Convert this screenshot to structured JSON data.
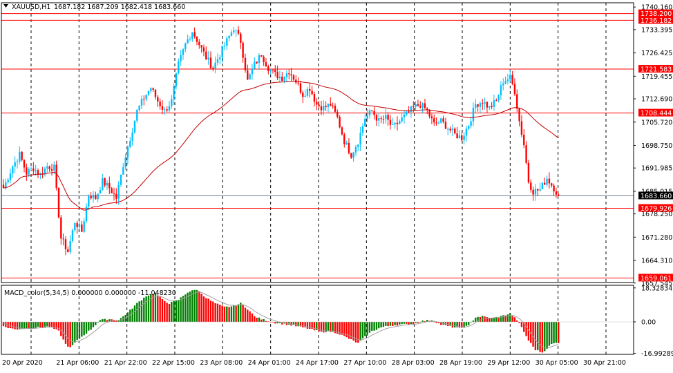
{
  "header": {
    "symbol": "XAUUSD,H1",
    "ohlc": "1687.182 1687.209 1682.418 1683.660",
    "macd_label": "MACD_color(5,34,5) 0.000000 0.000000 -11.048230"
  },
  "colors": {
    "bull": "#00BFFF",
    "bear": "#FF0000",
    "hist_pos": "#008000",
    "hist_neg": "#FF0000",
    "ma_line": "#C00000",
    "level_line": "#FF0000",
    "current_price_line": "#708090",
    "grid": "#000000"
  },
  "chart_data": [
    {
      "type": "candlestick",
      "title": "XAUUSD,H1",
      "y_axis_ticks": [
        "1740.160",
        "1733.395",
        "1726.425",
        "1719.455",
        "1712.690",
        "1705.720",
        "1698.750",
        "1691.985",
        "1685.015",
        "1678.250",
        "1671.280",
        "1664.310",
        "1657.545"
      ],
      "ylim": [
        1657.5,
        1740.2
      ],
      "x_axis_ticks": [
        "20 Apr 2020",
        "21 Apr 06:00",
        "21 Apr 22:00",
        "22 Apr 15:00",
        "23 Apr 08:00",
        "24 Apr 01:00",
        "24 Apr 17:00",
        "27 Apr 10:00",
        "28 Apr 03:00",
        "28 Apr 19:00",
        "29 Apr 12:00",
        "30 Apr 05:00",
        "30 Apr 21:00"
      ],
      "horizontal_levels": [
        "1738.200",
        "1736.182",
        "1721.583",
        "1708.444",
        "1679.926",
        "1659.061"
      ],
      "current_price": "1683.660",
      "close_path": [
        [
          0,
          1686.0
        ],
        [
          4,
          1692.5
        ],
        [
          7,
          1696.0
        ],
        [
          10,
          1690.5
        ],
        [
          13,
          1692.0
        ],
        [
          16,
          1690.0
        ],
        [
          19,
          1692.5
        ],
        [
          22,
          1692.0
        ],
        [
          25,
          1671.0
        ],
        [
          28,
          1667.0
        ],
        [
          31,
          1676.0
        ],
        [
          34,
          1673.0
        ],
        [
          37,
          1684.0
        ],
        [
          40,
          1683.0
        ],
        [
          43,
          1688.0
        ],
        [
          46,
          1686.0
        ],
        [
          49,
          1683.0
        ],
        [
          52,
          1693.0
        ],
        [
          55,
          1701.0
        ],
        [
          58,
          1709.0
        ],
        [
          61,
          1713.0
        ],
        [
          64,
          1716.0
        ],
        [
          67,
          1712.0
        ],
        [
          70,
          1709.0
        ],
        [
          73,
          1712.0
        ],
        [
          76,
          1723.0
        ],
        [
          79,
          1729.0
        ],
        [
          82,
          1733.0
        ],
        [
          85,
          1729.0
        ],
        [
          88,
          1725.0
        ],
        [
          91,
          1722.0
        ],
        [
          94,
          1726.0
        ],
        [
          97,
          1730.0
        ],
        [
          100,
          1734.0
        ],
        [
          103,
          1730.0
        ],
        [
          106,
          1718.0
        ],
        [
          109,
          1723.0
        ],
        [
          112,
          1726.0
        ],
        [
          115,
          1722.0
        ],
        [
          118,
          1720.0
        ],
        [
          121,
          1719.0
        ],
        [
          124,
          1721.0
        ],
        [
          127,
          1718.0
        ],
        [
          130,
          1714.0
        ],
        [
          133,
          1716.0
        ],
        [
          136,
          1711.0
        ],
        [
          139,
          1710.0
        ],
        [
          142,
          1711.0
        ],
        [
          145,
          1707.0
        ],
        [
          148,
          1700.0
        ],
        [
          151,
          1696.0
        ],
        [
          154,
          1700.0
        ],
        [
          157,
          1707.0
        ],
        [
          160,
          1709.0
        ],
        [
          163,
          1706.0
        ],
        [
          166,
          1707.0
        ],
        [
          169,
          1704.0
        ],
        [
          172,
          1706.0
        ],
        [
          175,
          1708.0
        ],
        [
          178,
          1710.0
        ],
        [
          181,
          1711.0
        ],
        [
          184,
          1709.0
        ],
        [
          187,
          1705.0
        ],
        [
          190,
          1706.0
        ],
        [
          193,
          1704.0
        ],
        [
          196,
          1702.0
        ],
        [
          199,
          1701.0
        ],
        [
          202,
          1705.0
        ],
        [
          205,
          1711.0
        ],
        [
          208,
          1712.0
        ],
        [
          211,
          1710.0
        ],
        [
          214,
          1712.0
        ],
        [
          217,
          1718.0
        ],
        [
          220,
          1719.0
        ],
        [
          222,
          1715.0
        ],
        [
          224,
          1706.0
        ],
        [
          226,
          1699.0
        ],
        [
          228,
          1688.0
        ],
        [
          230,
          1685.0
        ],
        [
          233,
          1685.5
        ],
        [
          236,
          1689.0
        ],
        [
          239,
          1686.0
        ],
        [
          241,
          1683.66
        ]
      ]
    },
    {
      "type": "bar",
      "title": "MACD_color(5,34,5)",
      "y_axis_ticks": [
        "18.328349",
        "0.00",
        "-16.992891"
      ],
      "ylim": [
        -17.5,
        19.0
      ],
      "histogram_path": [
        [
          0,
          -2.5
        ],
        [
          5,
          -4.0
        ],
        [
          10,
          -3.5
        ],
        [
          15,
          -3.0
        ],
        [
          20,
          -2.5
        ],
        [
          24,
          -5.0
        ],
        [
          27,
          -12.0
        ],
        [
          29,
          -14.0
        ],
        [
          32,
          -10.0
        ],
        [
          35,
          -7.0
        ],
        [
          38,
          -4.0
        ],
        [
          42,
          1.0
        ],
        [
          46,
          1.5
        ],
        [
          50,
          1.0
        ],
        [
          54,
          5.0
        ],
        [
          58,
          10.0
        ],
        [
          62,
          14.0
        ],
        [
          66,
          15.5
        ],
        [
          69,
          12.0
        ],
        [
          72,
          10.0
        ],
        [
          76,
          12.0
        ],
        [
          80,
          16.0
        ],
        [
          84,
          17.5
        ],
        [
          88,
          13.0
        ],
        [
          92,
          10.0
        ],
        [
          96,
          8.0
        ],
        [
          100,
          8.5
        ],
        [
          103,
          10.0
        ],
        [
          106,
          7.0
        ],
        [
          109,
          3.0
        ],
        [
          112,
          1.5
        ],
        [
          115,
          0.5
        ],
        [
          118,
          -0.5
        ],
        [
          121,
          -1.0
        ],
        [
          126,
          -2.0
        ],
        [
          132,
          -3.5
        ],
        [
          138,
          -5.5
        ],
        [
          141,
          -5.0
        ],
        [
          145,
          -6.0
        ],
        [
          150,
          -9.0
        ],
        [
          154,
          -11.5
        ],
        [
          157,
          -8.0
        ],
        [
          160,
          -5.0
        ],
        [
          164,
          -3.0
        ],
        [
          168,
          -2.0
        ],
        [
          172,
          -1.5
        ],
        [
          178,
          -1.0
        ],
        [
          182,
          0.5
        ],
        [
          186,
          1.0
        ],
        [
          190,
          -1.5
        ],
        [
          194,
          -2.5
        ],
        [
          198,
          -3.5
        ],
        [
          202,
          -2.0
        ],
        [
          205,
          2.5
        ],
        [
          208,
          3.0
        ],
        [
          212,
          2.0
        ],
        [
          216,
          3.0
        ],
        [
          220,
          4.5
        ],
        [
          223,
          1.0
        ],
        [
          225,
          -3.0
        ],
        [
          228,
          -10.0
        ],
        [
          231,
          -15.0
        ],
        [
          234,
          -16.5
        ],
        [
          238,
          -12.0
        ],
        [
          241,
          -11.05
        ]
      ]
    }
  ]
}
